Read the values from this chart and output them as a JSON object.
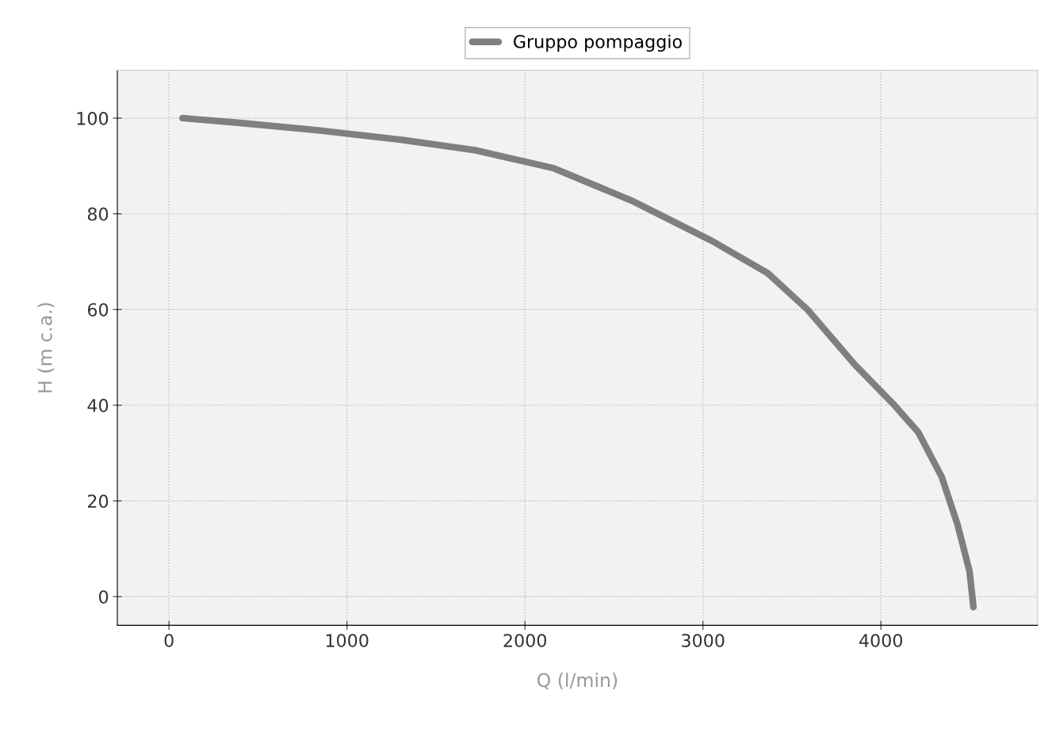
{
  "chart_data": {
    "type": "line",
    "xlabel": "Q (l/min)",
    "ylabel": "H (m c.a.)",
    "x": [
      76,
      400,
      831,
      1300,
      1720,
      2164,
      2609,
      3053,
      3364,
      3587,
      3853,
      4076,
      4209,
      4342,
      4431,
      4498,
      4520
    ],
    "series": [
      {
        "name": "Gruppo pompaggio",
        "color": "#7f7f7f",
        "values": [
          100,
          99,
          97.5,
          95.5,
          93.3,
          89.5,
          82.6,
          74.3,
          67.6,
          60,
          48.5,
          40,
          34.4,
          25,
          15,
          5.3,
          -2.2
        ]
      }
    ],
    "xlim": [
      -290,
      4880
    ],
    "ylim": [
      -6,
      110
    ],
    "xticks": [
      0,
      1000,
      2000,
      3000,
      4000
    ],
    "yticks": [
      0,
      20,
      40,
      60,
      80,
      100
    ],
    "grid": true,
    "legend": "top",
    "marker": "none",
    "line_style": "solid"
  }
}
